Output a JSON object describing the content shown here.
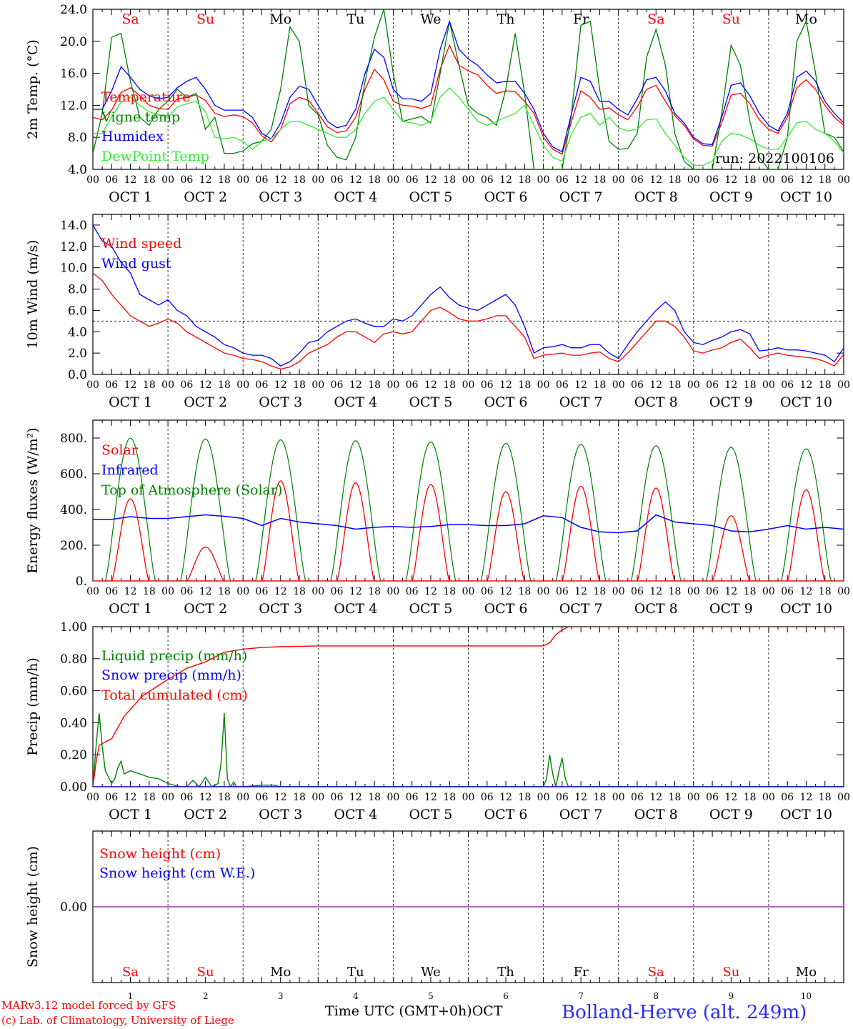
{
  "footer": {
    "model_line": "MARv3.12 model forced by GFS",
    "credit_line": "(c) Lab. of Climatology, University of Liege",
    "time_axis_label": "Time UTC (GMT+0h)",
    "month_label": "OCT",
    "station": "Bolland-Herve (alt. 249m)"
  },
  "run_label": "run: 2022100106",
  "days": [
    "Sa",
    "Su",
    "Mo",
    "Tu",
    "We",
    "Th",
    "Fr",
    "Sa",
    "Su",
    "Mo"
  ],
  "weekend_days": [
    "Sa",
    "Su"
  ],
  "date_labels": [
    "OCT  1",
    "OCT  2",
    "OCT  3",
    "OCT  4",
    "OCT  5",
    "OCT  6",
    "OCT  7",
    "OCT  8",
    "OCT  9",
    "OCT 10"
  ],
  "day_numbers": [
    "1",
    "2",
    "3",
    "4",
    "5",
    "6",
    "7",
    "8",
    "9",
    "10"
  ],
  "hour_ticks": [
    "00",
    "06",
    "12",
    "18"
  ],
  "colors": {
    "red": "#ff0000",
    "blue": "#0000ff",
    "darkgreen": "#008000",
    "lightgreen": "#33ee33",
    "purple": "#9933aa",
    "weekend": "#ff0000"
  },
  "chart_data": [
    {
      "type": "line",
      "id": "temp",
      "ylabel": "2m Temp. (°C)",
      "ylim": [
        4,
        24
      ],
      "yticks": [
        "4.0",
        "8.0",
        "12.0",
        "16.0",
        "20.0",
        "24.0"
      ],
      "x_unit": "hours since OCT 1 00 UTC",
      "x": [
        0,
        3,
        6,
        9,
        12,
        15,
        18,
        21,
        24,
        27,
        30,
        33,
        36,
        39,
        42,
        45,
        48,
        51,
        54,
        57,
        60,
        63,
        66,
        69,
        72,
        75,
        78,
        81,
        84,
        87,
        90,
        93,
        96,
        99,
        102,
        105,
        108,
        111,
        114,
        117,
        120,
        123,
        126,
        129,
        132,
        135,
        138,
        141,
        144,
        147,
        150,
        153,
        156,
        159,
        162,
        165,
        168,
        171,
        174,
        177,
        180,
        183,
        186,
        189,
        192,
        195,
        198,
        201,
        204,
        207,
        210,
        213,
        216,
        219,
        222,
        225,
        228,
        231,
        234,
        237,
        240
      ],
      "series": [
        {
          "name": "Temperature",
          "color": "#ff0000",
          "values": [
            10.5,
            10.2,
            11.4,
            13.6,
            14.2,
            13.2,
            12.0,
            11.6,
            11.5,
            12.8,
            13.0,
            13.3,
            12.6,
            11.0,
            10.6,
            10.8,
            10.6,
            9.8,
            8.2,
            7.4,
            9.0,
            12.2,
            13.0,
            12.6,
            11.0,
            9.3,
            8.6,
            8.8,
            10.5,
            14.0,
            16.5,
            15.2,
            12.5,
            12.0,
            11.9,
            11.6,
            12.0,
            16.5,
            19.5,
            17.0,
            16.3,
            15.8,
            14.5,
            13.5,
            13.8,
            13.7,
            12.5,
            11.0,
            8.0,
            6.5,
            5.9,
            10.0,
            13.8,
            13.0,
            11.5,
            11.7,
            10.8,
            10.2,
            11.8,
            14.0,
            14.5,
            12.5,
            10.7,
            9.5,
            7.8,
            7.0,
            6.9,
            9.8,
            13.3,
            13.5,
            12.2,
            10.2,
            9.0,
            8.5,
            10.5,
            14.2,
            15.2,
            14.0,
            12.0,
            10.5,
            9.5
          ]
        },
        {
          "name": "Vigne temp",
          "color": "#008000",
          "values": [
            6.0,
            11.0,
            20.5,
            21.0,
            15.0,
            10.5,
            9.5,
            11.5,
            12.5,
            14.0,
            13.0,
            13.5,
            9.0,
            10.5,
            6.0,
            6.0,
            6.3,
            7.2,
            7.5,
            9.0,
            14.0,
            21.8,
            20.0,
            12.0,
            10.8,
            7.0,
            5.5,
            5.2,
            8.0,
            15.0,
            20.5,
            24.0,
            16.0,
            10.0,
            10.3,
            10.6,
            9.8,
            16.0,
            22.5,
            17.0,
            12.0,
            11.0,
            10.5,
            9.5,
            14.0,
            21.0,
            13.5,
            4.0,
            4.0,
            4.0,
            4.0,
            11.0,
            22.0,
            22.5,
            14.0,
            7.5,
            6.5,
            6.6,
            8.5,
            18.0,
            21.5,
            17.0,
            8.5,
            5.0,
            4.0,
            3.9,
            4.0,
            11.0,
            19.5,
            17.0,
            10.0,
            5.5,
            4.0,
            4.0,
            8.0,
            20.0,
            22.5,
            16.0,
            8.5,
            8.0,
            6.2
          ]
        },
        {
          "name": "Humidex",
          "color": "#0000ff",
          "values": [
            11.5,
            11.5,
            13.8,
            16.8,
            15.5,
            14.0,
            13.2,
            12.8,
            13.0,
            14.2,
            15.0,
            15.5,
            14.0,
            12.0,
            11.4,
            11.4,
            11.4,
            10.5,
            8.5,
            7.8,
            9.8,
            13.0,
            14.4,
            14.0,
            12.0,
            10.0,
            9.2,
            9.5,
            11.5,
            16.0,
            19.0,
            18.0,
            14.0,
            12.8,
            12.8,
            12.5,
            13.5,
            19.0,
            22.5,
            19.0,
            17.8,
            17.0,
            15.8,
            14.8,
            15.0,
            15.0,
            13.5,
            11.5,
            8.5,
            6.8,
            6.2,
            11.0,
            15.5,
            15.0,
            12.5,
            12.5,
            11.5,
            10.8,
            12.8,
            15.2,
            15.5,
            13.8,
            11.0,
            9.8,
            8.0,
            7.2,
            7.1,
            10.5,
            14.5,
            14.8,
            13.2,
            11.0,
            9.5,
            8.8,
            11.0,
            15.5,
            16.3,
            15.0,
            12.5,
            11.0,
            9.8
          ]
        },
        {
          "name": "DewPoint Temp",
          "color": "#33ee33",
          "values": [
            8.5,
            8.5,
            10.5,
            12.4,
            13.0,
            12.0,
            11.2,
            10.8,
            10.5,
            11.8,
            12.2,
            12.5,
            11.2,
            8.0,
            7.8,
            8.0,
            7.5,
            6.5,
            7.5,
            7.8,
            9.0,
            10.0,
            10.0,
            9.5,
            9.0,
            8.5,
            8.0,
            8.0,
            9.0,
            11.0,
            12.5,
            13.0,
            11.5,
            10.0,
            9.8,
            9.5,
            10.0,
            13.0,
            14.2,
            13.0,
            11.5,
            10.0,
            9.5,
            10.0,
            10.5,
            11.0,
            12.0,
            9.5,
            7.0,
            5.5,
            5.0,
            8.5,
            10.5,
            11.0,
            9.5,
            10.5,
            9.2,
            8.8,
            9.0,
            10.2,
            10.3,
            8.5,
            7.0,
            5.5,
            4.5,
            4.5,
            5.0,
            7.5,
            8.5,
            8.3,
            7.8,
            7.0,
            6.5,
            6.5,
            8.0,
            9.8,
            10.0,
            9.0,
            8.5,
            7.5,
            6.0
          ]
        }
      ],
      "note": "run: 2022100106"
    },
    {
      "type": "line",
      "id": "wind",
      "ylabel": "10m Wind (m/s)",
      "ylim": [
        0,
        15
      ],
      "yticks": [
        "0.0",
        "2.0",
        "4.0",
        "6.0",
        "8.0",
        "10.0",
        "12.0",
        "14.0"
      ],
      "reference_line": 5,
      "x": [
        0,
        3,
        6,
        9,
        12,
        15,
        18,
        21,
        24,
        27,
        30,
        33,
        36,
        39,
        42,
        45,
        48,
        51,
        54,
        57,
        60,
        63,
        66,
        69,
        72,
        75,
        78,
        81,
        84,
        87,
        90,
        93,
        96,
        99,
        102,
        105,
        108,
        111,
        114,
        117,
        120,
        123,
        126,
        129,
        132,
        135,
        138,
        141,
        144,
        147,
        150,
        153,
        156,
        159,
        162,
        165,
        168,
        171,
        174,
        177,
        180,
        183,
        186,
        189,
        192,
        195,
        198,
        201,
        204,
        207,
        210,
        213,
        216,
        219,
        222,
        225,
        228,
        231,
        234,
        237,
        240
      ],
      "series": [
        {
          "name": "Wind speed",
          "color": "#ff0000",
          "values": [
            9.5,
            8.8,
            7.5,
            6.5,
            5.5,
            5.0,
            4.5,
            4.8,
            5.2,
            4.8,
            4.0,
            3.5,
            3.0,
            2.5,
            2.0,
            1.8,
            1.5,
            1.4,
            1.2,
            0.8,
            0.5,
            0.7,
            1.2,
            2.0,
            2.4,
            2.8,
            3.5,
            4.0,
            4.0,
            3.5,
            3.0,
            3.8,
            4.0,
            3.8,
            4.0,
            5.0,
            6.0,
            6.3,
            5.8,
            5.2,
            5.0,
            5.0,
            5.2,
            5.5,
            5.5,
            4.5,
            3.5,
            1.5,
            1.8,
            1.9,
            2.0,
            1.8,
            1.8,
            2.0,
            2.1,
            1.5,
            1.2,
            2.0,
            3.0,
            4.0,
            5.0,
            5.0,
            4.5,
            3.5,
            2.2,
            2.0,
            2.3,
            2.5,
            3.0,
            3.3,
            2.5,
            1.5,
            1.8,
            2.0,
            1.8,
            1.7,
            1.6,
            1.5,
            1.2,
            0.8,
            1.9
          ]
        },
        {
          "name": "Wind gust",
          "color": "#0000ff",
          "values": [
            14.0,
            12.5,
            12.0,
            10.5,
            9.5,
            7.5,
            7.0,
            6.5,
            7.0,
            6.0,
            5.5,
            4.5,
            4.0,
            3.5,
            2.8,
            2.5,
            2.0,
            1.8,
            1.8,
            1.5,
            0.8,
            1.2,
            2.0,
            3.0,
            3.2,
            4.0,
            4.5,
            5.0,
            5.2,
            4.8,
            4.5,
            4.5,
            5.2,
            5.0,
            5.5,
            6.5,
            7.5,
            8.2,
            7.2,
            6.5,
            6.2,
            6.0,
            6.5,
            7.0,
            7.5,
            6.5,
            4.5,
            2.0,
            2.5,
            2.6,
            2.8,
            2.5,
            2.5,
            2.8,
            2.8,
            2.0,
            1.5,
            2.8,
            4.0,
            5.0,
            6.0,
            6.8,
            6.0,
            4.0,
            3.0,
            2.8,
            3.2,
            3.5,
            4.0,
            4.2,
            3.8,
            2.2,
            2.3,
            2.5,
            2.3,
            2.3,
            2.2,
            2.0,
            1.8,
            1.2,
            2.5
          ]
        }
      ]
    },
    {
      "type": "line",
      "id": "energy",
      "ylabel": "Energy fluxes (W/m²)",
      "ylim": [
        0,
        900
      ],
      "yticks": [
        "0.",
        "200.",
        "400.",
        "600.",
        "800."
      ],
      "series": [
        {
          "name": "Solar",
          "color": "#ff0000",
          "day_peaks": [
            460,
            190,
            560,
            550,
            540,
            500,
            530,
            520,
            365,
            510
          ]
        },
        {
          "name": "Infrared",
          "color": "#0000ff",
          "x": [
            0,
            6,
            12,
            18,
            24,
            30,
            36,
            42,
            48,
            54,
            60,
            66,
            72,
            78,
            84,
            90,
            96,
            102,
            108,
            114,
            120,
            126,
            132,
            138,
            144,
            150,
            156,
            162,
            168,
            174,
            180,
            186,
            192,
            198,
            204,
            210,
            216,
            222,
            228,
            234,
            240
          ],
          "values": [
            345,
            345,
            360,
            350,
            350,
            360,
            370,
            362,
            350,
            310,
            350,
            330,
            320,
            310,
            290,
            300,
            305,
            300,
            305,
            315,
            315,
            310,
            310,
            320,
            365,
            355,
            300,
            275,
            270,
            280,
            370,
            330,
            320,
            310,
            280,
            275,
            290,
            310,
            290,
            300,
            290
          ]
        },
        {
          "name": "Top of Atmosphere (Solar)",
          "color": "#008000",
          "day_peaks": [
            800,
            795,
            790,
            785,
            778,
            770,
            765,
            757,
            748,
            740
          ]
        }
      ]
    },
    {
      "type": "line",
      "id": "precip",
      "ylabel": "Precip (mm/h)",
      "ylim": [
        0,
        1.0
      ],
      "yticks": [
        "0.00",
        "0.20",
        "0.40",
        "0.60",
        "0.80",
        "1.00"
      ],
      "series": [
        {
          "name": "Liquid precip (mm/h)",
          "color": "#008000",
          "x": [
            0,
            1,
            2,
            3,
            4,
            6,
            7,
            8,
            9,
            10,
            12,
            15,
            18,
            21,
            24,
            28,
            30,
            32,
            34,
            36,
            38,
            40,
            41,
            42,
            43,
            44,
            45,
            46,
            48,
            54,
            58,
            60,
            144,
            145,
            146,
            147,
            148,
            149,
            150,
            151,
            152,
            154,
            156,
            240
          ],
          "values": [
            0,
            0.25,
            0.46,
            0.25,
            0.1,
            0.02,
            0.05,
            0.12,
            0.16,
            0.08,
            0.1,
            0.08,
            0.06,
            0.05,
            0.02,
            0.0,
            0.0,
            0.04,
            0.0,
            0.06,
            0.0,
            0.02,
            0.15,
            0.46,
            0.05,
            0.0,
            0.03,
            0.0,
            0.0,
            0.01,
            0.01,
            0,
            0,
            0.05,
            0.2,
            0.08,
            0.0,
            0.1,
            0.18,
            0.05,
            0,
            0,
            0,
            0
          ]
        },
        {
          "name": "Snow precip (mm/h)",
          "color": "#0000ff",
          "x": [
            0,
            240
          ],
          "values": [
            0,
            0
          ]
        },
        {
          "name": "Total cumulated (cm)",
          "color": "#ff0000",
          "x": [
            0,
            1,
            2,
            4,
            6,
            10,
            16,
            24,
            30,
            36,
            42,
            48,
            54,
            60,
            72,
            96,
            120,
            144,
            146,
            148,
            150,
            152,
            240
          ],
          "values": [
            0,
            0.15,
            0.26,
            0.28,
            0.3,
            0.44,
            0.57,
            0.67,
            0.74,
            0.78,
            0.84,
            0.86,
            0.87,
            0.875,
            0.88,
            0.88,
            0.88,
            0.88,
            0.9,
            0.95,
            0.98,
            1.0,
            1.0
          ]
        }
      ]
    },
    {
      "type": "line",
      "id": "snow",
      "ylabel": "Snow height (cm)",
      "ylim": [
        -1,
        1
      ],
      "yticks": [
        "0.00"
      ],
      "series": [
        {
          "name": "Snow height (cm)",
          "color": "#ff0000",
          "x": [
            0,
            240
          ],
          "values": [
            0,
            0
          ]
        },
        {
          "name": "Snow height (cm W.E.)",
          "color": "#0000ff",
          "x": [
            0,
            240
          ],
          "values": [
            0,
            0
          ]
        }
      ]
    }
  ]
}
